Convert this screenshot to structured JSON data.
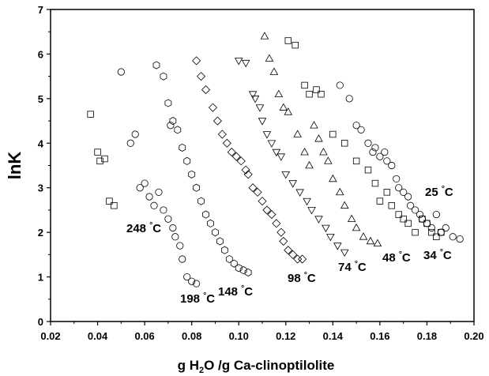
{
  "chart_data": {
    "type": "scatter",
    "title": "",
    "xlabel": "g H2O /g Ca-clinoptilolite",
    "ylabel": "lnK",
    "xlim": [
      0.02,
      0.2
    ],
    "ylim": [
      0,
      7
    ],
    "xticks": [
      "0.02",
      "0.04",
      "0.06",
      "0.08",
      "0.10",
      "0.12",
      "0.14",
      "0.16",
      "0.18",
      "0.20"
    ],
    "yticks": [
      "0",
      "1",
      "2",
      "3",
      "4",
      "5",
      "6",
      "7"
    ],
    "grid": false,
    "series": [
      {
        "name": "25 °C",
        "marker": "circle",
        "points": [
          [
            0.143,
            5.3
          ],
          [
            0.147,
            5.0
          ],
          [
            0.15,
            4.4
          ],
          [
            0.152,
            4.3
          ],
          [
            0.155,
            4.0
          ],
          [
            0.157,
            3.8
          ],
          [
            0.158,
            3.9
          ],
          [
            0.16,
            3.7
          ],
          [
            0.162,
            3.8
          ],
          [
            0.163,
            3.6
          ],
          [
            0.165,
            3.5
          ],
          [
            0.167,
            3.2
          ],
          [
            0.168,
            3.0
          ],
          [
            0.17,
            2.9
          ],
          [
            0.172,
            2.8
          ],
          [
            0.173,
            2.6
          ],
          [
            0.175,
            2.5
          ],
          [
            0.177,
            2.4
          ],
          [
            0.178,
            2.3
          ],
          [
            0.18,
            2.2
          ],
          [
            0.182,
            2.1
          ],
          [
            0.184,
            2.4
          ],
          [
            0.186,
            2.0
          ],
          [
            0.188,
            2.1
          ],
          [
            0.191,
            1.9
          ],
          [
            0.194,
            1.85
          ]
        ]
      },
      {
        "name": "34 °C",
        "marker": "square",
        "points": [
          [
            0.121,
            6.3
          ],
          [
            0.124,
            6.2
          ],
          [
            0.128,
            5.3
          ],
          [
            0.13,
            5.1
          ],
          [
            0.133,
            5.2
          ],
          [
            0.135,
            5.1
          ],
          [
            0.14,
            4.2
          ],
          [
            0.145,
            4.0
          ],
          [
            0.15,
            3.6
          ],
          [
            0.155,
            3.4
          ],
          [
            0.158,
            3.1
          ],
          [
            0.16,
            2.7
          ],
          [
            0.163,
            2.9
          ],
          [
            0.165,
            2.6
          ],
          [
            0.168,
            2.4
          ],
          [
            0.17,
            2.3
          ],
          [
            0.172,
            2.2
          ],
          [
            0.175,
            2.0
          ],
          [
            0.178,
            2.3
          ],
          [
            0.18,
            2.2
          ],
          [
            0.182,
            2.0
          ],
          [
            0.184,
            1.9
          ],
          [
            0.186,
            2.0
          ]
        ]
      },
      {
        "name": "48 °C",
        "marker": "triangle-up",
        "points": [
          [
            0.111,
            6.4
          ],
          [
            0.113,
            5.9
          ],
          [
            0.115,
            5.6
          ],
          [
            0.117,
            5.1
          ],
          [
            0.119,
            4.8
          ],
          [
            0.121,
            4.7
          ],
          [
            0.125,
            4.2
          ],
          [
            0.128,
            3.8
          ],
          [
            0.13,
            3.5
          ],
          [
            0.132,
            4.4
          ],
          [
            0.134,
            4.1
          ],
          [
            0.136,
            3.8
          ],
          [
            0.138,
            3.6
          ],
          [
            0.14,
            3.2
          ],
          [
            0.143,
            2.9
          ],
          [
            0.145,
            2.6
          ],
          [
            0.148,
            2.3
          ],
          [
            0.15,
            2.1
          ],
          [
            0.153,
            1.9
          ],
          [
            0.156,
            1.8
          ],
          [
            0.159,
            1.75
          ]
        ]
      },
      {
        "name": "74 °C",
        "marker": "triangle-down",
        "points": [
          [
            0.1,
            5.85
          ],
          [
            0.103,
            5.8
          ],
          [
            0.106,
            5.1
          ],
          [
            0.107,
            5.0
          ],
          [
            0.109,
            4.8
          ],
          [
            0.11,
            4.5
          ],
          [
            0.112,
            4.2
          ],
          [
            0.114,
            4.0
          ],
          [
            0.116,
            3.8
          ],
          [
            0.118,
            3.7
          ],
          [
            0.12,
            3.3
          ],
          [
            0.123,
            3.1
          ],
          [
            0.126,
            2.9
          ],
          [
            0.129,
            2.7
          ],
          [
            0.131,
            2.5
          ],
          [
            0.134,
            2.3
          ],
          [
            0.137,
            2.1
          ],
          [
            0.139,
            1.9
          ],
          [
            0.142,
            1.7
          ],
          [
            0.145,
            1.55
          ]
        ]
      },
      {
        "name": "98 °C",
        "marker": "diamond",
        "points": [
          [
            0.082,
            5.85
          ],
          [
            0.084,
            5.5
          ],
          [
            0.086,
            5.2
          ],
          [
            0.089,
            4.8
          ],
          [
            0.091,
            4.5
          ],
          [
            0.093,
            4.2
          ],
          [
            0.095,
            4.0
          ],
          [
            0.097,
            3.8
          ],
          [
            0.099,
            3.7
          ],
          [
            0.101,
            3.6
          ],
          [
            0.103,
            3.4
          ],
          [
            0.104,
            3.3
          ],
          [
            0.106,
            3.0
          ],
          [
            0.108,
            2.9
          ],
          [
            0.11,
            2.7
          ],
          [
            0.112,
            2.5
          ],
          [
            0.114,
            2.4
          ],
          [
            0.116,
            2.2
          ],
          [
            0.118,
            2.0
          ],
          [
            0.119,
            1.8
          ],
          [
            0.121,
            1.6
          ],
          [
            0.123,
            1.5
          ],
          [
            0.125,
            1.4
          ],
          [
            0.127,
            1.4
          ]
        ]
      },
      {
        "name": "148 °C",
        "marker": "hexagon",
        "points": [
          [
            0.065,
            5.75
          ],
          [
            0.068,
            5.5
          ],
          [
            0.07,
            4.9
          ],
          [
            0.072,
            4.5
          ],
          [
            0.074,
            4.3
          ],
          [
            0.076,
            3.9
          ],
          [
            0.078,
            3.6
          ],
          [
            0.08,
            3.3
          ],
          [
            0.082,
            3.0
          ],
          [
            0.084,
            2.7
          ],
          [
            0.086,
            2.4
          ],
          [
            0.088,
            2.2
          ],
          [
            0.09,
            2.0
          ],
          [
            0.092,
            1.8
          ],
          [
            0.094,
            1.6
          ],
          [
            0.096,
            1.4
          ],
          [
            0.098,
            1.3
          ],
          [
            0.1,
            1.2
          ],
          [
            0.102,
            1.15
          ],
          [
            0.104,
            1.1
          ]
        ]
      },
      {
        "name": "198 °C",
        "marker": "circle",
        "points": [
          [
            0.05,
            5.6
          ],
          [
            0.054,
            4.0
          ],
          [
            0.056,
            4.2
          ],
          [
            0.058,
            3.0
          ],
          [
            0.06,
            3.1
          ],
          [
            0.062,
            2.8
          ],
          [
            0.064,
            2.6
          ],
          [
            0.066,
            2.9
          ],
          [
            0.068,
            2.5
          ],
          [
            0.07,
            2.3
          ],
          [
            0.071,
            4.4
          ],
          [
            0.072,
            2.1
          ],
          [
            0.073,
            1.9
          ],
          [
            0.075,
            1.7
          ],
          [
            0.076,
            1.4
          ],
          [
            0.078,
            1.0
          ],
          [
            0.08,
            0.9
          ],
          [
            0.082,
            0.85
          ]
        ]
      },
      {
        "name": "248 °C",
        "marker": "square",
        "points": [
          [
            0.037,
            4.65
          ],
          [
            0.04,
            3.8
          ],
          [
            0.041,
            3.6
          ],
          [
            0.043,
            3.65
          ],
          [
            0.045,
            2.7
          ],
          [
            0.047,
            2.6
          ]
        ]
      }
    ]
  }
}
